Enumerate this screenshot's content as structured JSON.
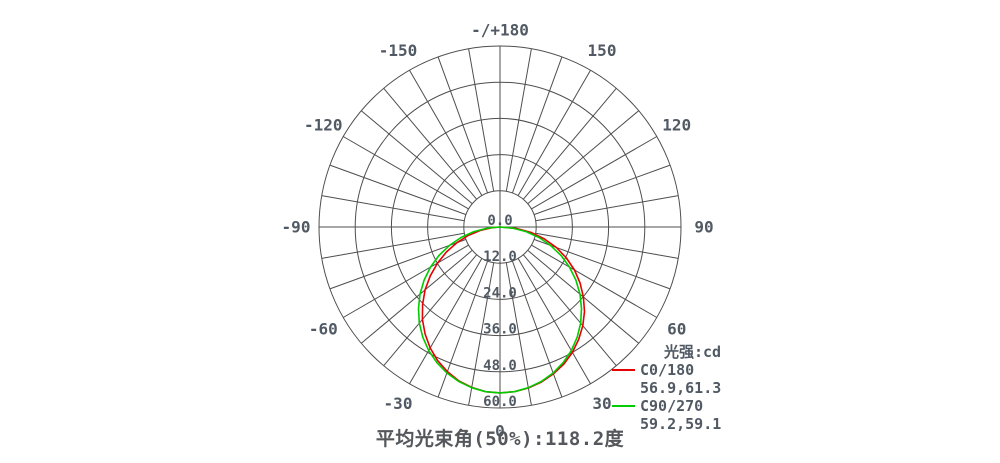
{
  "chart_data": {
    "type": "line",
    "subtype": "polar_photometric",
    "bottom_caption": "平均光束角(50%):118.2度",
    "angle_axis": {
      "spoke_step_deg": 10,
      "labels": [
        {
          "deg": 180,
          "text": "-/+180"
        },
        {
          "deg": -150,
          "text": "-150"
        },
        {
          "deg": 150,
          "text": "150"
        },
        {
          "deg": -120,
          "text": "-120"
        },
        {
          "deg": 120,
          "text": "120"
        },
        {
          "deg": -90,
          "text": "-90"
        },
        {
          "deg": 90,
          "text": "90"
        },
        {
          "deg": -60,
          "text": "-60"
        },
        {
          "deg": 60,
          "text": "60"
        },
        {
          "deg": -30,
          "text": "-30"
        },
        {
          "deg": 30,
          "text": "30"
        },
        {
          "deg": 0,
          "text": "0"
        }
      ]
    },
    "radial_axis": {
      "unit": "cd",
      "max": 60,
      "ticks": [
        0,
        12,
        24,
        36,
        48,
        60
      ],
      "tick_labels": [
        "0.0",
        "12.0",
        "24.0",
        "36.0",
        "48.0",
        "60.0"
      ]
    },
    "legend": {
      "header": "光强:cd",
      "entries": [
        {
          "label": "C0/180",
          "values": "56.9,61.3",
          "color": "#e60000"
        },
        {
          "label": "C90/270",
          "values": "59.2,59.1",
          "color": "#00cc00"
        }
      ]
    },
    "beam_angle": {
      "average_50pct_deg": 118.2,
      "c0_c180_deg": [
        56.9,
        61.3
      ],
      "c90_c270_deg": [
        59.2,
        59.1
      ]
    },
    "series": [
      {
        "name": "C0/180",
        "color": "#e60000",
        "angles_deg": [
          -90,
          -85,
          -80,
          -75,
          -70,
          -65,
          -60,
          -55,
          -50,
          -45,
          -40,
          -35,
          -30,
          -25,
          -20,
          -15,
          -10,
          -5,
          0,
          5,
          10,
          15,
          20,
          25,
          30,
          35,
          40,
          45,
          50,
          55,
          60,
          65,
          70,
          75,
          80,
          85,
          90
        ],
        "intensity_cd": [
          0,
          2.9,
          6.7,
          10.9,
          15.2,
          19.6,
          23.9,
          28.2,
          32.4,
          36.3,
          40.0,
          43.3,
          46.3,
          48.9,
          51.0,
          52.8,
          54.0,
          54.8,
          55.0,
          54.8,
          54.2,
          53.2,
          51.8,
          50.1,
          48.0,
          45.5,
          42.7,
          39.6,
          36.1,
          32.4,
          28.5,
          24.3,
          19.9,
          15.2,
          10.4,
          5.4,
          0
        ]
      },
      {
        "name": "C90/270",
        "color": "#00cc00",
        "angles_deg": [
          -90,
          -85,
          -80,
          -75,
          -70,
          -65,
          -60,
          -55,
          -50,
          -45,
          -40,
          -35,
          -30,
          -25,
          -20,
          -15,
          -10,
          -5,
          0,
          5,
          10,
          15,
          20,
          25,
          30,
          35,
          40,
          45,
          50,
          55,
          60,
          65,
          70,
          75,
          80,
          85,
          90
        ],
        "intensity_cd": [
          0,
          4.2,
          8.8,
          13.3,
          17.8,
          22.3,
          26.6,
          30.7,
          34.6,
          38.2,
          41.6,
          44.6,
          47.3,
          49.6,
          51.5,
          53.0,
          54.1,
          54.8,
          55.0,
          54.8,
          54.1,
          53.0,
          51.5,
          49.6,
          47.3,
          44.6,
          41.6,
          38.2,
          34.6,
          30.7,
          26.6,
          22.3,
          17.8,
          13.3,
          8.8,
          4.2,
          0
        ]
      }
    ],
    "colors": {
      "grid": "#4e4e4e",
      "text": "#515a64",
      "caption": "#54575b"
    }
  }
}
